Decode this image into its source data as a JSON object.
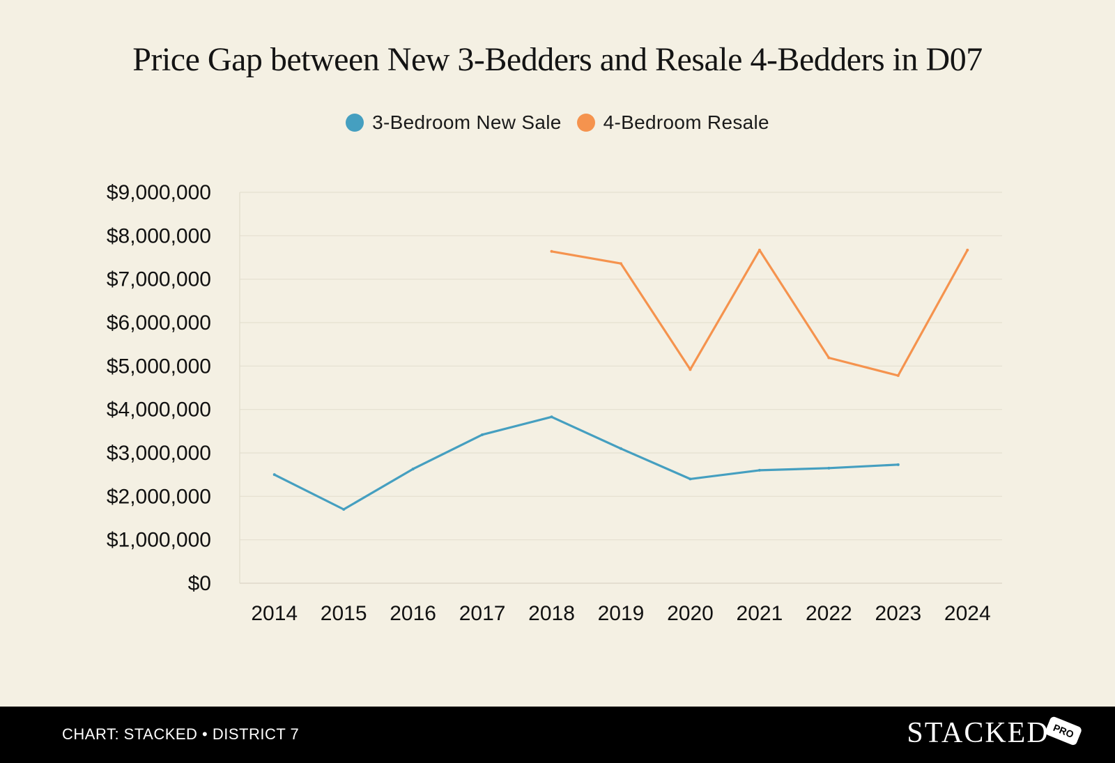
{
  "chart_data": {
    "type": "line",
    "title": "Price Gap between New 3-Bedders and Resale 4-Bedders in D07",
    "categories": [
      "2014",
      "2015",
      "2016",
      "2017",
      "2018",
      "2019",
      "2020",
      "2021",
      "2022",
      "2023",
      "2024"
    ],
    "y_ticks": [
      "$0",
      "$1,000,000",
      "$2,000,000",
      "$3,000,000",
      "$4,000,000",
      "$5,000,000",
      "$6,000,000",
      "$7,000,000",
      "$8,000,000",
      "$9,000,000"
    ],
    "ylim": [
      0,
      9000000
    ],
    "grid": true,
    "legend_position": "top-center",
    "series": [
      {
        "name": "3-Bedroom New Sale",
        "color": "#459fc0",
        "values": [
          2500000,
          1700000,
          2630000,
          3420000,
          3830000,
          3100000,
          2400000,
          2600000,
          2650000,
          2730000,
          null
        ]
      },
      {
        "name": "4-Bedroom Resale",
        "color": "#f5934e",
        "values": [
          null,
          null,
          null,
          null,
          7640000,
          7360000,
          4920000,
          7670000,
          5190000,
          4780000,
          7670000
        ]
      }
    ]
  },
  "footer": {
    "credit": "CHART: STACKED • DISTRICT 7",
    "brand": "STACKED",
    "badge": "PRO"
  }
}
